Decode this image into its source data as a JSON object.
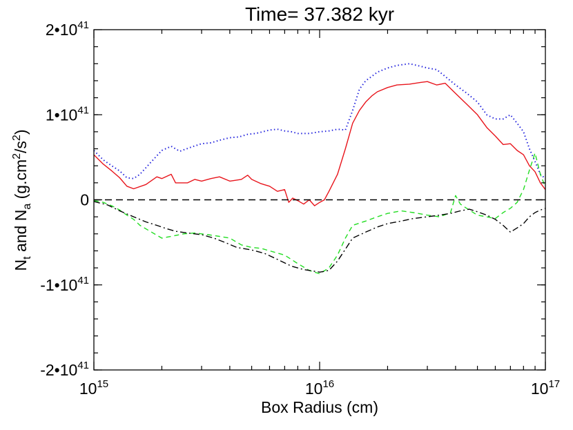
{
  "chart_data": {
    "type": "line",
    "title": "Time= 37.382 kyr",
    "xlabel": "Box Radius (cm)",
    "ylabel": {
      "part1": "N",
      "sub1": "t",
      "part2": " and N",
      "sub2": "a",
      "part3": "  (g.cm",
      "sup": "2",
      "part4": "/s",
      "sup2": "2",
      "part5": ")"
    },
    "xscale": "log",
    "xlim": [
      1000000000000000.0,
      1e+17
    ],
    "ylim": [
      -2e+41,
      2e+41
    ],
    "xticks": [
      {
        "value": 1000000000000000.0,
        "base": "10",
        "exp": "15"
      },
      {
        "value": 1e+16,
        "base": "10",
        "exp": "16"
      },
      {
        "value": 1e+17,
        "base": "10",
        "exp": "17"
      }
    ],
    "yticks": [
      {
        "value": 2e+41,
        "base": "2•10",
        "exp": "41"
      },
      {
        "value": 1e+41,
        "base": "1•10",
        "exp": "41"
      },
      {
        "value": 0,
        "base": "0",
        "exp": ""
      },
      {
        "value": -1e+41,
        "base": "-1•10",
        "exp": "41"
      },
      {
        "value": -2e+41,
        "base": "-2•10",
        "exp": "41"
      }
    ],
    "series": [
      {
        "color": "#e8141b",
        "dash": "solid",
        "x": [
          1000000000000000.0,
          1100000000000000.0,
          1200000000000000.0,
          1300000000000000.0,
          1400000000000000.0,
          1500000000000000.0,
          1700000000000000.0,
          1900000000000000.0,
          2000000000000000.0,
          2200000000000000.0,
          2300000000000000.0,
          2600000000000000.0,
          2800000000000000.0,
          3000000000000000.0,
          3300000000000000.0,
          3600000000000000.0,
          4000000000000000.0,
          4500000000000000.0,
          4800000000000000.0,
          5000000000000000.0,
          5500000000000000.0,
          6000000000000000.0,
          6500000000000000.0,
          7000000000000000.0,
          7300000000000000.0,
          7600000000000000.0,
          8000000000000000.0,
          8500000000000000.0,
          9000000000000000.0,
          9500000000000000.0,
          1e+16,
          1.05e+16,
          1.1e+16,
          1.2e+16,
          1.3e+16,
          1.4e+16,
          1.5e+16,
          1.6e+16,
          1.7e+16,
          1.8e+16,
          2e+16,
          2.2e+16,
          2.5e+16,
          2.8e+16,
          3e+16,
          3.3e+16,
          3.6e+16,
          4e+16,
          4.5e+16,
          5e+16,
          5.5e+16,
          6e+16,
          6.5e+16,
          7e+16,
          7.5e+16,
          8e+16,
          8.5e+16,
          9e+16,
          9.5e+16,
          1e+17
        ],
        "y": [
          5.3e+40,
          4.2e+40,
          3.4e+40,
          2.6e+40,
          1.6e+40,
          1.3e+40,
          1.8e+40,
          2.7e+40,
          2.5e+40,
          3e+40,
          2e+40,
          2e+40,
          2.4e+40,
          2.2e+40,
          2.5e+40,
          2.7e+40,
          2.2e+40,
          2.4e+40,
          2.9e+40,
          2.4e+40,
          1.9e+40,
          1.6e+40,
          1e+40,
          1.2e+40,
          -3e+39,
          2e+39,
          -1e+39,
          -5e+39,
          0,
          -7e+39,
          -3e+39,
          0,
          1e+40,
          3e+40,
          6e+40,
          9e+40,
          1.05e+41,
          1.15e+41,
          1.22e+41,
          1.27e+41,
          1.32e+41,
          1.35e+41,
          1.36e+41,
          1.38e+41,
          1.39e+41,
          1.35e+41,
          1.37e+41,
          1.25e+41,
          1.12e+41,
          1e+41,
          8.5e+40,
          7.5e+40,
          6.5e+40,
          6.6e+40,
          5.8e+40,
          5.3e+40,
          4e+40,
          3.3e+40,
          2e+40,
          1.2e+40
        ]
      },
      {
        "color": "#2222dd",
        "dash": "dotted",
        "x": [
          1000000000000000.0,
          1100000000000000.0,
          1200000000000000.0,
          1300000000000000.0,
          1400000000000000.0,
          1500000000000000.0,
          1600000000000000.0,
          1800000000000000.0,
          2000000000000000.0,
          2200000000000000.0,
          2400000000000000.0,
          2700000000000000.0,
          3000000000000000.0,
          3300000000000000.0,
          3600000000000000.0,
          4000000000000000.0,
          4400000000000000.0,
          4800000000000000.0,
          5200000000000000.0,
          5600000000000000.0,
          6000000000000000.0,
          6500000000000000.0,
          7000000000000000.0,
          7500000000000000.0,
          8000000000000000.0,
          9000000000000000.0,
          1e+16,
          1.1e+16,
          1.2e+16,
          1.3e+16,
          1.4e+16,
          1.5e+16,
          1.6e+16,
          1.7e+16,
          1.8e+16,
          2e+16,
          2.2e+16,
          2.5e+16,
          2.8e+16,
          3e+16,
          3.3e+16,
          3.6e+16,
          4e+16,
          4.5e+16,
          5e+16,
          5.5e+16,
          6e+16,
          6.5e+16,
          7e+16,
          7.5e+16,
          8e+16,
          8.5e+16,
          9e+16,
          9.5e+16,
          1e+17
        ],
        "y": [
          5.8e+40,
          4.7e+40,
          4e+40,
          3.4e+40,
          2.6e+40,
          2.5e+40,
          3e+40,
          4.5e+40,
          5.8e+40,
          6.3e+40,
          5.7e+40,
          6.2e+40,
          6.6e+40,
          6.7e+40,
          7e+40,
          7.3e+40,
          7.4e+40,
          7.7e+40,
          7.8e+40,
          8e+40,
          8.2e+40,
          8.3e+40,
          8.1e+40,
          8e+40,
          7.8e+40,
          7.8e+40,
          8e+40,
          8.1e+40,
          8.3e+40,
          8.2e+40,
          1.05e+41,
          1.3e+41,
          1.4e+41,
          1.45e+41,
          1.5e+41,
          1.55e+41,
          1.58e+41,
          1.6e+41,
          1.57e+41,
          1.55e+41,
          1.53e+41,
          1.45e+41,
          1.35e+41,
          1.25e+41,
          1.15e+41,
          1e+41,
          9.5e+40,
          9.5e+40,
          1e+41,
          9e+40,
          8e+40,
          6e+40,
          4.5e+40,
          3e+40,
          2.5e+40
        ]
      },
      {
        "color": "#22dd22",
        "dash": "dashed",
        "x": [
          1000000000000000.0,
          1100000000000000.0,
          1200000000000000.0,
          1300000000000000.0,
          1400000000000000.0,
          1500000000000000.0,
          1600000000000000.0,
          1800000000000000.0,
          2000000000000000.0,
          2200000000000000.0,
          2500000000000000.0,
          2800000000000000.0,
          3200000000000000.0,
          3600000000000000.0,
          4000000000000000.0,
          4500000000000000.0,
          5000000000000000.0,
          5500000000000000.0,
          6000000000000000.0,
          7000000000000000.0,
          8000000000000000.0,
          9000000000000000.0,
          1e+16,
          1.1e+16,
          1.2e+16,
          1.3e+16,
          1.4e+16,
          1.6e+16,
          1.8e+16,
          2e+16,
          2.3e+16,
          2.6e+16,
          3e+16,
          3.4e+16,
          3.8e+16,
          4e+16,
          4.2e+16,
          4.6e+16,
          5e+16,
          5.5e+16,
          6e+16,
          6.5e+16,
          7e+16,
          7.5e+16,
          8e+16,
          8.5e+16,
          9e+16,
          9.5e+16,
          1e+17
        ],
        "y": [
          -1e+39,
          -3e+39,
          -7e+39,
          -1.2e+40,
          -1.8e+40,
          -2.3e+40,
          -3e+40,
          -3.8e+40,
          -4.5e+40,
          -4.3e+40,
          -4e+40,
          -3.9e+40,
          -4.1e+40,
          -4.3e+40,
          -4.5e+40,
          -5.3e+40,
          -5.6e+40,
          -5.7e+40,
          -6e+40,
          -6.5e+40,
          -7.5e+40,
          -8.3e+40,
          -8.7e+40,
          -8e+40,
          -6.5e+40,
          -4.5e+40,
          -3e+40,
          -2.5e+40,
          -2e+40,
          -1.6e+40,
          -1.3e+40,
          -1.5e+40,
          -1.8e+40,
          -2e+40,
          -1.5e+40,
          5e+39,
          -5e+39,
          -1.2e+40,
          -1.8e+40,
          -2e+40,
          -2.2e+40,
          -1.5e+40,
          -1e+40,
          -3e+39,
          1.2e+40,
          3.5e+40,
          5.5e+40,
          3e+40,
          1.5e+40
        ]
      },
      {
        "color": "#000000",
        "dash": "dashdot",
        "x": [
          1000000000000000.0,
          1150000000000000.0,
          1300000000000000.0,
          1500000000000000.0,
          1700000000000000.0,
          1900000000000000.0,
          2100000000000000.0,
          2300000000000000.0,
          2600000000000000.0,
          3000000000000000.0,
          3400000000000000.0,
          3800000000000000.0,
          4300000000000000.0,
          5000000000000000.0,
          5700000000000000.0,
          6500000000000000.0,
          7500000000000000.0,
          8500000000000000.0,
          9500000000000000.0,
          1e+16,
          1.1e+16,
          1.2e+16,
          1.3e+16,
          1.4e+16,
          1.6e+16,
          1.8e+16,
          2e+16,
          2.3e+16,
          2.6e+16,
          3e+16,
          3.4e+16,
          3.8e+16,
          4.2e+16,
          4.6e+16,
          5e+16,
          5.5e+16,
          6e+16,
          6.5e+16,
          7e+16,
          7.5e+16,
          8e+16,
          8.5e+16,
          9e+16,
          9.5e+16,
          1e+17
        ],
        "y": [
          -2e+39,
          -6e+39,
          -1.3e+40,
          -2e+40,
          -2.6e+40,
          -3e+40,
          -3.4e+40,
          -3.7e+40,
          -3.9e+40,
          -4.1e+40,
          -4.5e+40,
          -5e+40,
          -5.6e+40,
          -5.9e+40,
          -6.3e+40,
          -7e+40,
          -7.8e+40,
          -8.2e+40,
          -8.4e+40,
          -8.5e+40,
          -8.3e+40,
          -7.2e+40,
          -5.8e+40,
          -4.5e+40,
          -3.8e+40,
          -3.2e+40,
          -2.8e+40,
          -2.5e+40,
          -2.2e+40,
          -2e+40,
          -1.8e+40,
          -1.6e+40,
          -1.3e+40,
          -1.1e+40,
          -1.4e+40,
          -1.8e+40,
          -2.3e+40,
          -3e+40,
          -3.8e+40,
          -3.3e+40,
          -2.8e+40,
          -2e+40,
          -1.5e+40,
          -1.2e+40,
          -1e+40
        ]
      },
      {
        "color": "#000000",
        "dash": "longdash",
        "x": [
          1000000000000000.0,
          1e+17
        ],
        "y": [
          0,
          0
        ]
      }
    ]
  }
}
